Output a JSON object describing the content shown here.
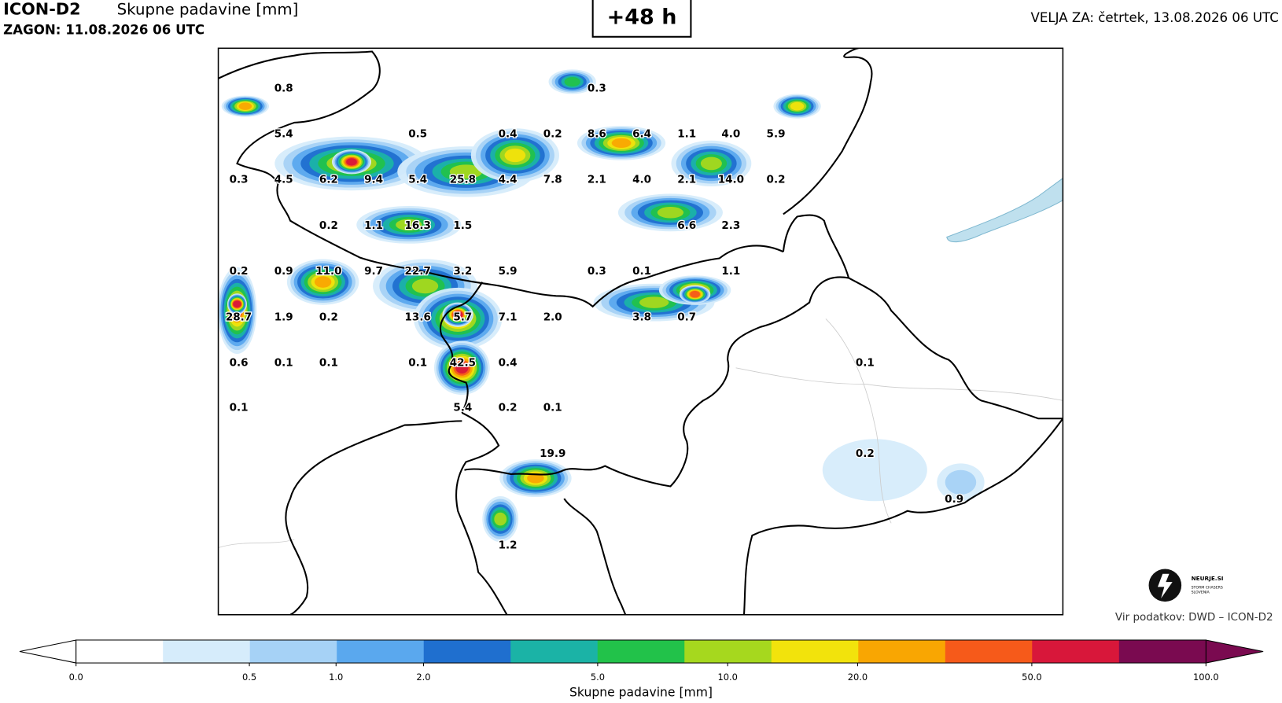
{
  "header": {
    "model": "ICON-D2",
    "product": "Skupne padavine [mm]",
    "run": "ZAGON: 11.08.2026 06 UTC",
    "lead": "+48 h",
    "valid": "VELJA ZA: četrtek, 13.08.2026 06 UTC"
  },
  "map": {
    "labels": [
      "0.8",
      "0.3",
      "5.4",
      "0.5",
      "0.4",
      "0.2",
      "8.6",
      "6.4",
      "1.1",
      "4.0",
      "5.9",
      "0.3",
      "4.5",
      "6.2",
      "9.4",
      "5.4",
      "25.8",
      "4.4",
      "7.8",
      "2.1",
      "4.0",
      "2.1",
      "14.0",
      "0.2",
      "0.2",
      "1.1",
      "16.3",
      "1.5",
      "6.6",
      "2.3",
      "0.2",
      "0.9",
      "11.0",
      "9.7",
      "22.7",
      "3.2",
      "5.9",
      "0.3",
      "0.1",
      "1.1",
      "28.7",
      "1.9",
      "0.2",
      "13.6",
      "5.7",
      "7.1",
      "2.0",
      "3.8",
      "0.7",
      "0.6",
      "0.1",
      "0.1",
      "0.1",
      "42.5",
      "0.4",
      "0.1",
      "0.1",
      "5.4",
      "0.2",
      "0.1",
      "19.9",
      "0.2",
      "0.9",
      "1.2"
    ]
  },
  "colorbar": {
    "ticks": [
      "0.0",
      "0.5",
      "1.0",
      "2.0",
      "5.0",
      "10.0",
      "20.0",
      "50.0",
      "100.0"
    ],
    "label": "Skupne padavine [mm]"
  },
  "logo": {
    "name": "NEURJE.SI",
    "tagline1": "STORM CHASERS",
    "tagline2": "SLOVENIA"
  },
  "source": "Vir podatkov: DWD – ICON-D2"
}
